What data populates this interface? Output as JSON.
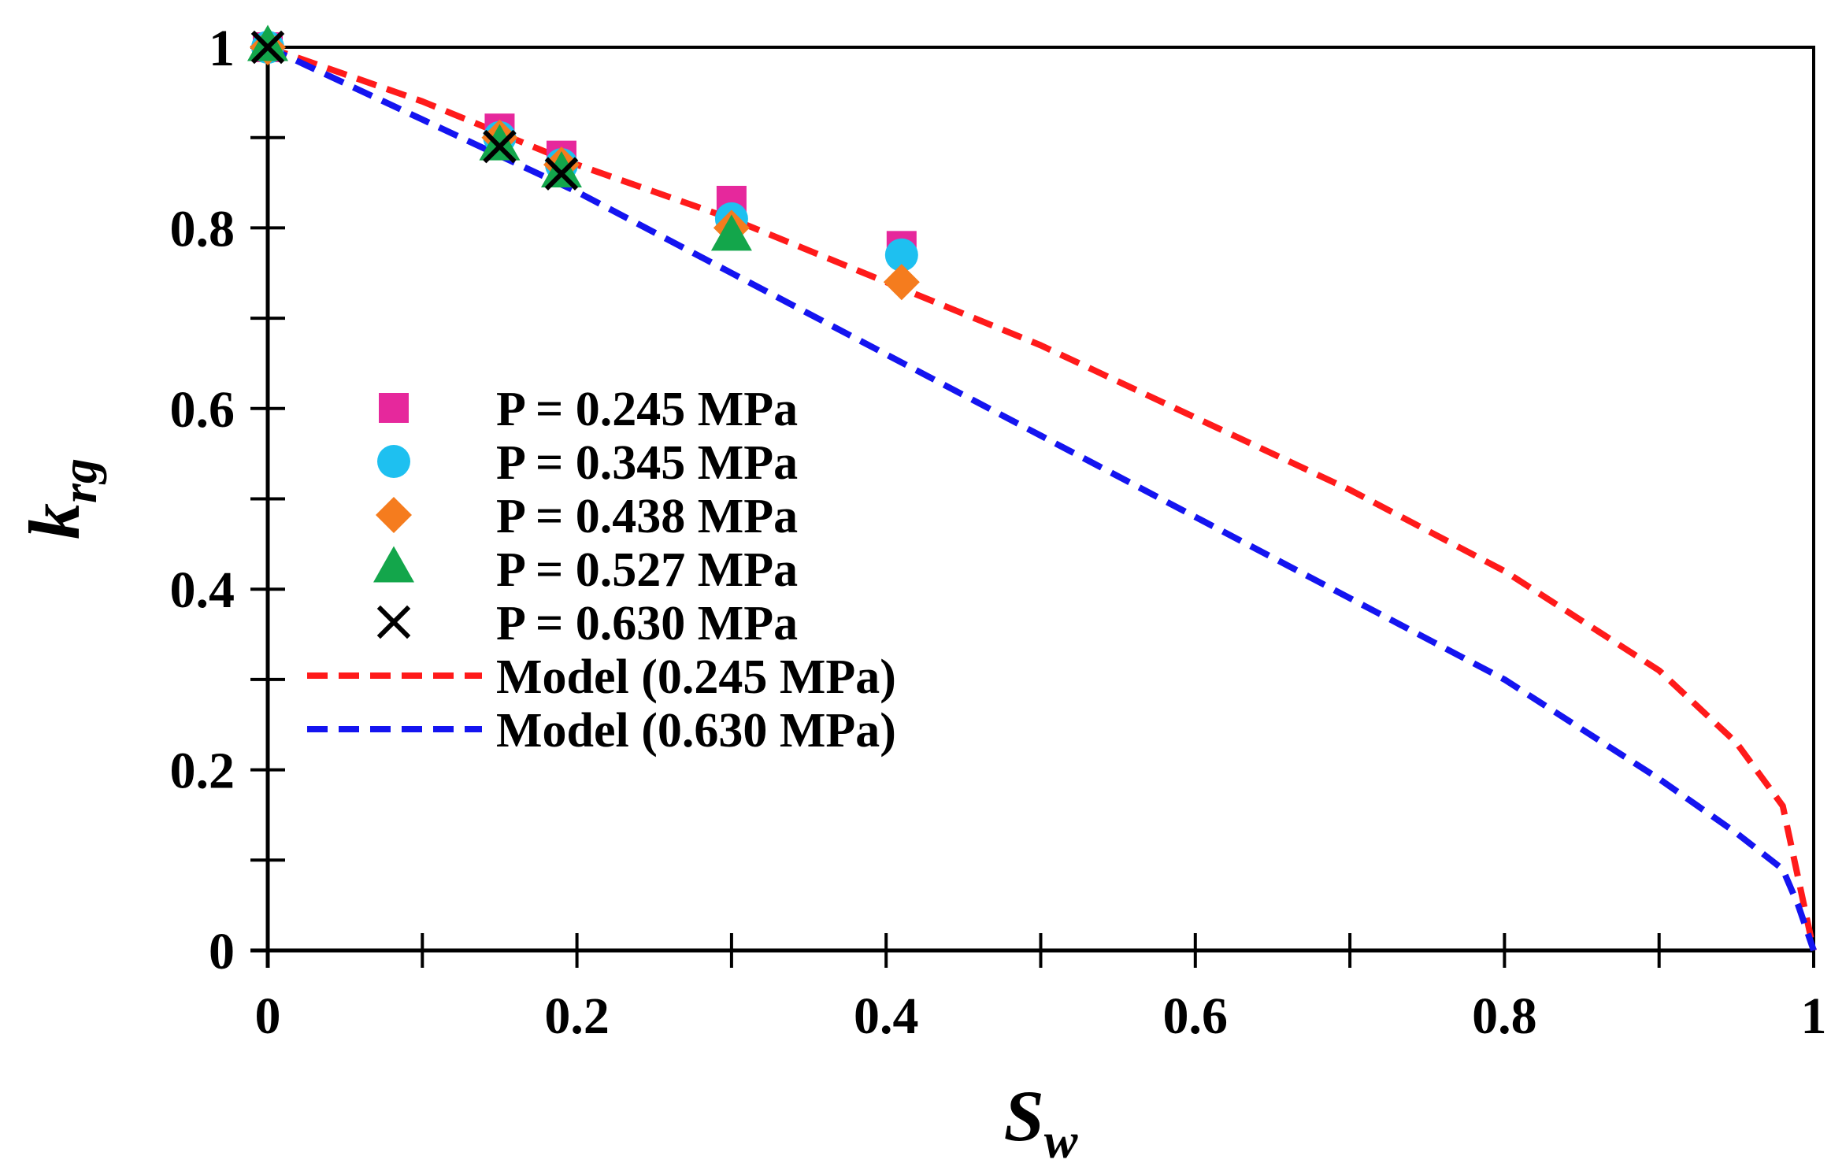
{
  "chart_data": {
    "type": "scatter",
    "title": "",
    "xlabel": {
      "base": "S",
      "sub": "w"
    },
    "ylabel": {
      "base": "k",
      "sub": "rg"
    },
    "xlim": [
      0,
      1
    ],
    "ylim": [
      0,
      1
    ],
    "x_ticks": [
      "0",
      "0.2",
      "0.4",
      "0.6",
      "0.8",
      "1"
    ],
    "y_ticks": [
      "0",
      "0.2",
      "0.4",
      "0.6",
      "0.8",
      "1"
    ],
    "x_tick_values": [
      0,
      0.2,
      0.4,
      0.6,
      0.8,
      1
    ],
    "y_tick_values": [
      0,
      0.2,
      0.4,
      0.6,
      0.8,
      1
    ],
    "x_minor_step": 0.1,
    "y_minor_step": 0.1,
    "grid": false,
    "legend_position": "left",
    "series": [
      {
        "name": "P = 0.245 MPa",
        "kind": "marker",
        "marker": "square",
        "color": "#e6289c",
        "x": [
          0,
          0.15,
          0.19,
          0.3,
          0.41
        ],
        "y": [
          1.0,
          0.91,
          0.88,
          0.83,
          0.78
        ]
      },
      {
        "name": "P = 0.345 MPa",
        "kind": "marker",
        "marker": "circle",
        "color": "#1ec0f0",
        "x": [
          0,
          0.15,
          0.19,
          0.3,
          0.41
        ],
        "y": [
          1.0,
          0.9,
          0.87,
          0.81,
          0.77
        ]
      },
      {
        "name": "P = 0.438 MPa",
        "kind": "marker",
        "marker": "diamond",
        "color": "#f57c1e",
        "x": [
          0,
          0.15,
          0.19,
          0.3,
          0.41
        ],
        "y": [
          1.0,
          0.9,
          0.87,
          0.8,
          0.74
        ]
      },
      {
        "name": "P = 0.527 MPa",
        "kind": "marker",
        "marker": "triangle",
        "color": "#13a64b",
        "x": [
          0,
          0.15,
          0.19,
          0.3
        ],
        "y": [
          1.0,
          0.89,
          0.86,
          0.79
        ]
      },
      {
        "name": "P = 0.630 MPa",
        "kind": "marker",
        "marker": "cross",
        "color": "#000000",
        "x": [
          0,
          0.15,
          0.19
        ],
        "y": [
          1.0,
          0.89,
          0.86
        ]
      },
      {
        "name": "Model (0.245 MPa)",
        "kind": "line",
        "style": "dashed",
        "color": "#ff1a1a",
        "x": [
          0,
          0.1,
          0.2,
          0.3,
          0.4,
          0.5,
          0.6,
          0.7,
          0.8,
          0.9,
          0.95,
          0.98,
          0.99,
          1.0
        ],
        "y": [
          1.0,
          0.94,
          0.87,
          0.81,
          0.74,
          0.67,
          0.59,
          0.51,
          0.42,
          0.31,
          0.23,
          0.16,
          0.08,
          0.0
        ]
      },
      {
        "name": "Model (0.630 MPa)",
        "kind": "line",
        "style": "dashed",
        "color": "#1414f0",
        "x": [
          0,
          0.1,
          0.2,
          0.3,
          0.4,
          0.5,
          0.6,
          0.7,
          0.8,
          0.9,
          0.95,
          0.98,
          0.99,
          1.0
        ],
        "y": [
          1.0,
          0.92,
          0.84,
          0.75,
          0.66,
          0.57,
          0.48,
          0.39,
          0.3,
          0.19,
          0.13,
          0.09,
          0.05,
          0.0
        ]
      }
    ]
  }
}
